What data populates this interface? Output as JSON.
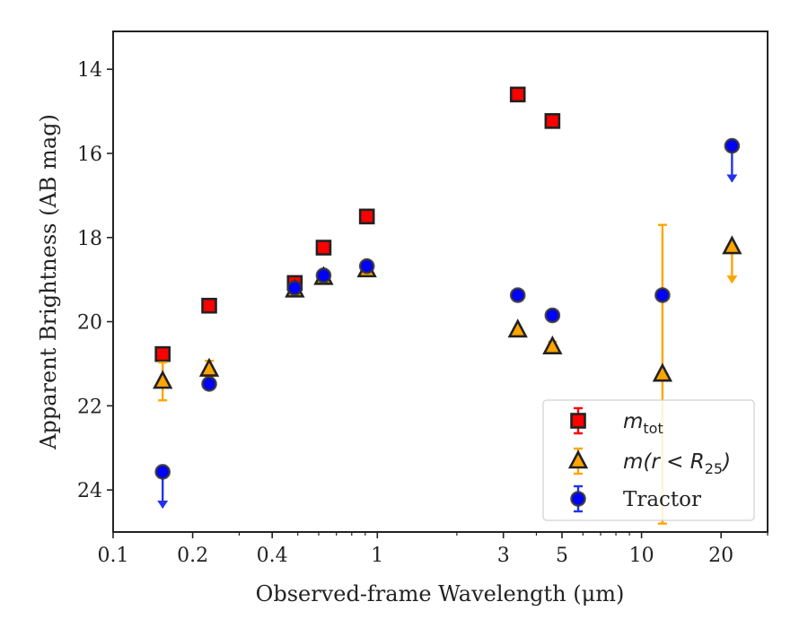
{
  "chart_data": {
    "type": "scatter",
    "title": "",
    "xlabel": "Observed-frame Wavelength (μm)",
    "ylabel": "Apparent Brightness (AB mag)",
    "xscale": "log",
    "yinverted": true,
    "xlim": [
      0.1,
      30
    ],
    "ylim": [
      25,
      13.1
    ],
    "x_ticks": [
      {
        "value": 0.1,
        "label": "0.1"
      },
      {
        "value": 0.2,
        "label": "0.2"
      },
      {
        "value": 0.4,
        "label": "0.4"
      },
      {
        "value": 1,
        "label": "1"
      },
      {
        "value": 3,
        "label": "3"
      },
      {
        "value": 5,
        "label": "5"
      },
      {
        "value": 10,
        "label": "10"
      },
      {
        "value": 20,
        "label": "20"
      }
    ],
    "x_minor_ticks": [
      0.3,
      0.5,
      0.6,
      0.7,
      0.8,
      0.9,
      2,
      4,
      6,
      7,
      8,
      9,
      30
    ],
    "y_ticks": [
      {
        "value": 14,
        "label": "14"
      },
      {
        "value": 16,
        "label": "16"
      },
      {
        "value": 18,
        "label": "18"
      },
      {
        "value": 20,
        "label": "20"
      },
      {
        "value": 22,
        "label": "22"
      },
      {
        "value": 24,
        "label": "24"
      }
    ],
    "legend_placement": "lower-right",
    "grid": false,
    "series": [
      {
        "key": "mtot",
        "marker": "square",
        "color": "#ff0000",
        "edge_color": "#222222",
        "errcolor": "#ff0000",
        "points": [
          {
            "x": 0.154,
            "y": 20.77,
            "err": 0.1
          },
          {
            "x": 0.231,
            "y": 19.62,
            "err": 0.05
          },
          {
            "x": 0.487,
            "y": 19.08,
            "err": 0.03
          },
          {
            "x": 0.626,
            "y": 18.24,
            "err": 0.03
          },
          {
            "x": 0.913,
            "y": 17.5,
            "err": 0.03
          },
          {
            "x": 3.4,
            "y": 14.6,
            "err": 0.03
          },
          {
            "x": 4.6,
            "y": 15.23,
            "err": 0.03
          }
        ]
      },
      {
        "key": "mr25",
        "marker": "triangle",
        "color": "#ffa500",
        "edge_color": "#222222",
        "errcolor": "#ffa500",
        "points": [
          {
            "x": 0.154,
            "y": 21.42,
            "err": 0.45
          },
          {
            "x": 0.231,
            "y": 21.13,
            "err": 0.2
          },
          {
            "x": 0.487,
            "y": 19.25,
            "err": 0.03
          },
          {
            "x": 0.626,
            "y": 18.95,
            "err": 0.03
          },
          {
            "x": 0.913,
            "y": 18.77,
            "err": 0.03
          },
          {
            "x": 3.4,
            "y": 20.2,
            "err": 0.05
          },
          {
            "x": 4.6,
            "y": 20.6,
            "err": 0.12
          },
          {
            "x": 12.0,
            "y": 21.25,
            "err_low": 3.55,
            "err_high": 3.55
          },
          {
            "x": 22.0,
            "y": 18.22,
            "upper_limit": true
          }
        ]
      },
      {
        "key": "tractor",
        "marker": "circle",
        "color": "#0000ff",
        "edge_color": "#333333",
        "errcolor": "#2233ee",
        "points": [
          {
            "x": 0.154,
            "y": 23.57,
            "upper_limit": true
          },
          {
            "x": 0.231,
            "y": 21.48,
            "err": 0.05
          },
          {
            "x": 0.487,
            "y": 19.2,
            "err": 0.03
          },
          {
            "x": 0.626,
            "y": 18.9,
            "err": 0.03
          },
          {
            "x": 0.913,
            "y": 18.68,
            "err": 0.03
          },
          {
            "x": 3.4,
            "y": 19.37,
            "err": 0.03
          },
          {
            "x": 4.6,
            "y": 19.85,
            "err": 0.03
          },
          {
            "x": 12.0,
            "y": 19.37,
            "err": 0.05
          },
          {
            "x": 22.0,
            "y": 15.82,
            "upper_limit": true
          }
        ]
      }
    ],
    "legend": [
      {
        "series": "mtot",
        "label_main": "m",
        "label_sub": "tot",
        "label_tail": ""
      },
      {
        "series": "mr25",
        "label_main": "m(r < R",
        "label_sub": "25",
        "label_tail": ")"
      },
      {
        "series": "tractor",
        "label_main": "Tractor",
        "label_sub": "",
        "label_tail": ""
      }
    ]
  }
}
